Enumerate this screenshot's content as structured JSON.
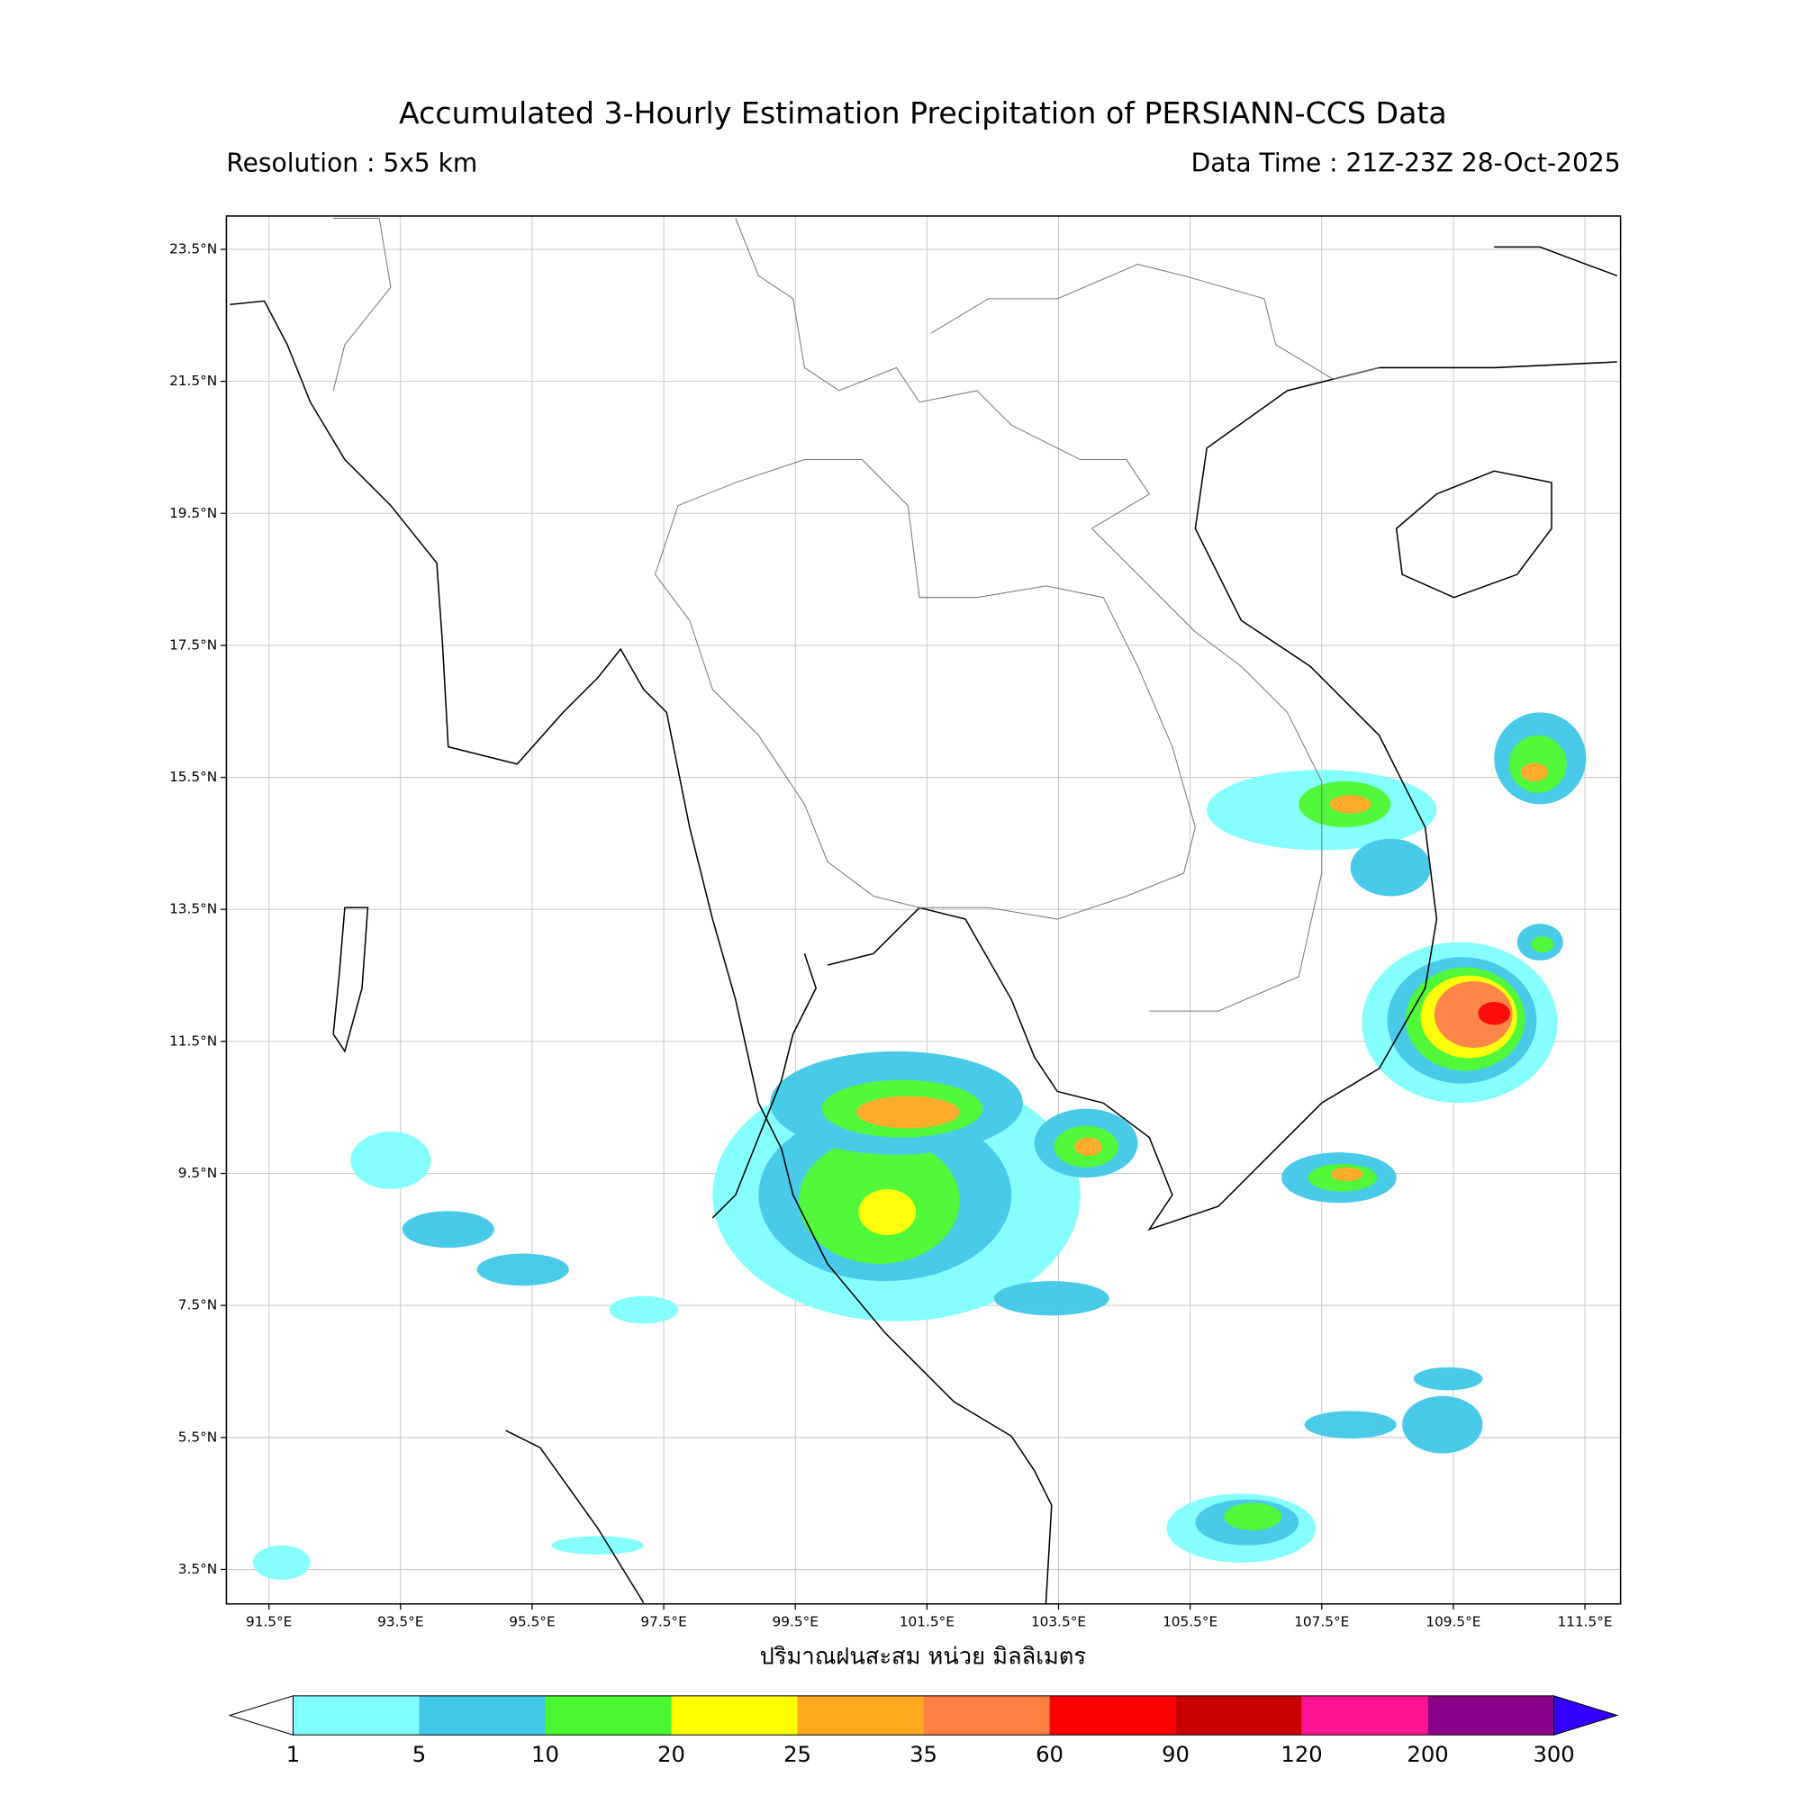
{
  "header": {
    "title": "Accumulated 3-Hourly Estimation Precipitation of PERSIANN-CCS Data",
    "resolution": "Resolution : 5x5 km",
    "data_time": "Data Time : 21Z-23Z 28-Oct-2025"
  },
  "map": {
    "lon_labels": [
      "91.5°E",
      "93.5°E",
      "95.5°E",
      "97.5°E",
      "99.5°E",
      "101.5°E",
      "103.5°E",
      "105.5°E",
      "107.5°E",
      "109.5°E",
      "111.5°E"
    ],
    "lat_labels": [
      "23.5°N",
      "21.5°N",
      "19.5°N",
      "17.5°N",
      "15.5°N",
      "13.5°N",
      "11.5°N",
      "9.5°N",
      "7.5°N",
      "5.5°N",
      "3.5°N"
    ],
    "caption": "ปริมาณฝนสะสม หน่วย มิลลิเมตร"
  },
  "colorbar": {
    "levels": [
      1,
      5,
      10,
      20,
      25,
      35,
      60,
      90,
      120,
      200,
      300
    ],
    "colors": [
      "#80ffff",
      "#40c8e8",
      "#48f830",
      "#ffff00",
      "#ffa820",
      "#ff8040",
      "#ff0000",
      "#c80000",
      "#ff1493",
      "#8b008b"
    ],
    "under_color": "#ffffff",
    "over_color": "#3300ff"
  }
}
